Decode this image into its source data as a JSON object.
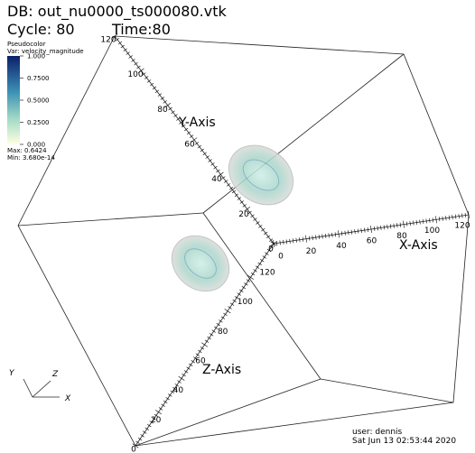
{
  "header": {
    "db": "DB: out_nu0000_ts000080.vtk",
    "cycle": "Cycle: 80",
    "time": "Time:80"
  },
  "legend": {
    "plot": "Pseudocolor",
    "variable": "Var: velocity_magnitude",
    "ticks": [
      "1.000",
      "0.7500",
      "0.5000",
      "0.2500",
      "0.000"
    ],
    "max": "Max: 0.6424",
    "min": "Min: 3.680e-14"
  },
  "axes": {
    "y": {
      "title": "Y-Axis",
      "ticks": [
        0,
        20,
        40,
        60,
        80,
        100,
        120
      ]
    },
    "z": {
      "title": "Z-Axis",
      "ticks": [
        0,
        20,
        40,
        60,
        80,
        100,
        120
      ]
    },
    "x": {
      "title": "X-Axis",
      "ticks": [
        0,
        20,
        40,
        60,
        80,
        100,
        120
      ]
    }
  },
  "triad": {
    "x": "X",
    "y": "Y",
    "z": "Z"
  },
  "footer": {
    "user": "user: dennis",
    "date": "Sat Jun 13 02:53:44 2020"
  }
}
